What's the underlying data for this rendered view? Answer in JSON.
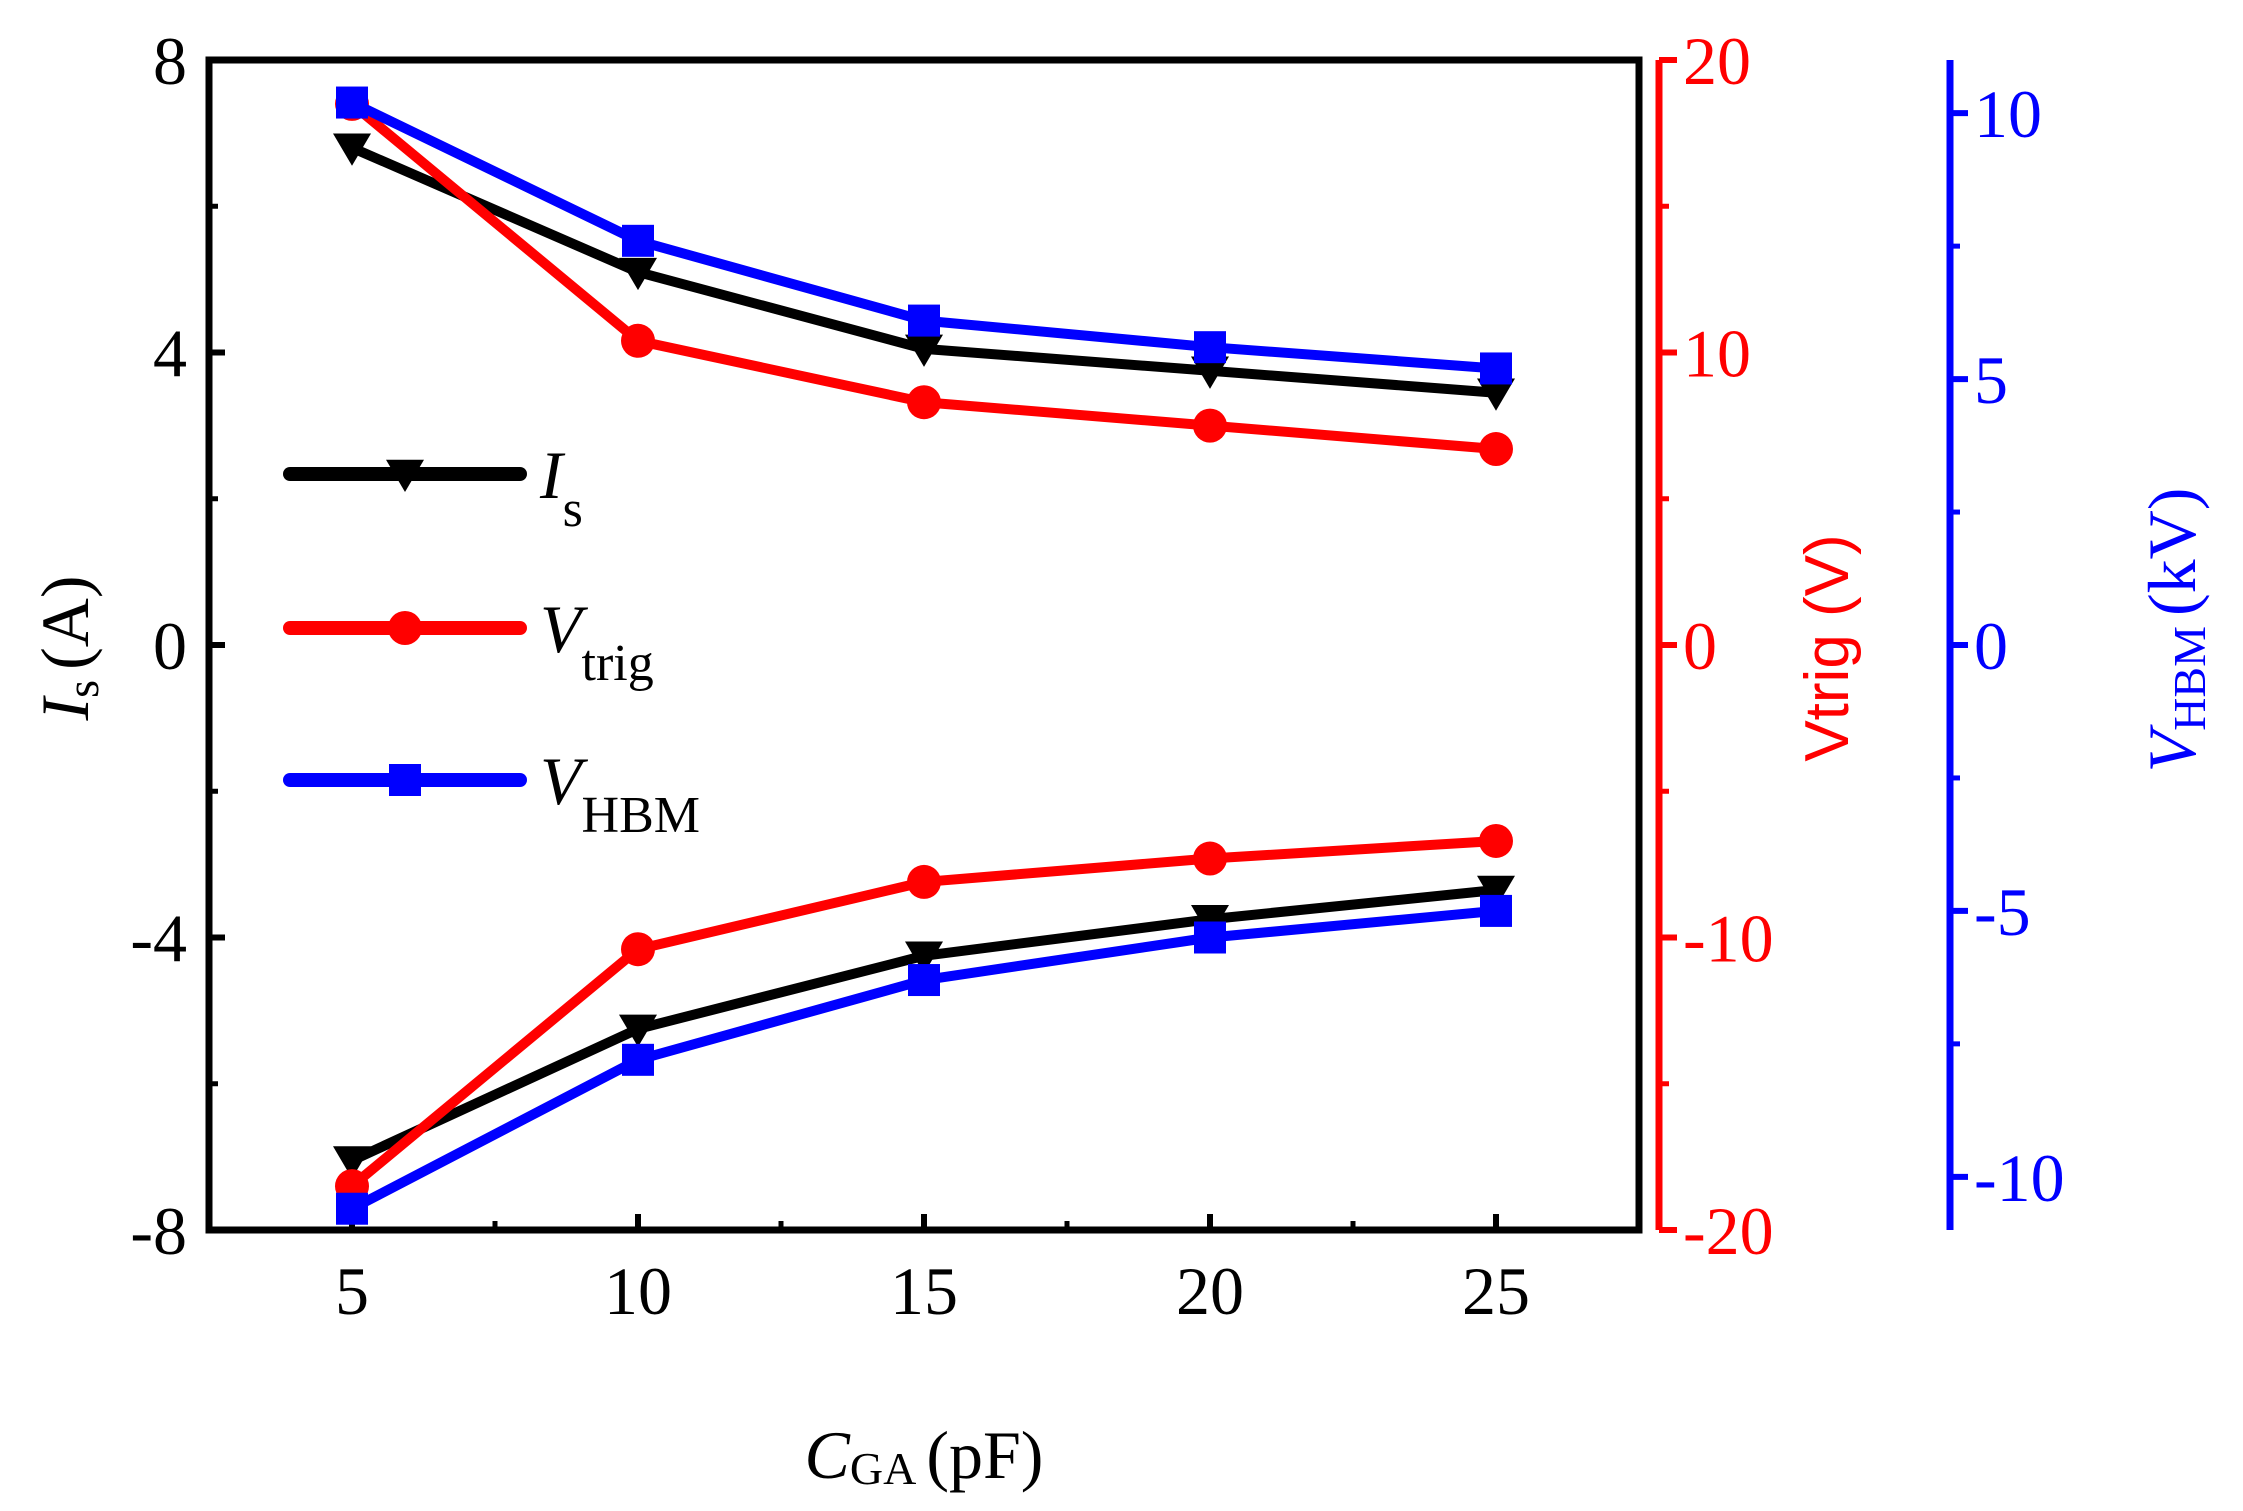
{
  "chart_data": {
    "type": "line",
    "x": [
      5,
      10,
      15,
      20,
      25
    ],
    "xlabel": {
      "main": "C",
      "sub": "GA",
      "unit": "(pF)"
    },
    "xlim": [
      2.5,
      27.5
    ],
    "xticks": [
      "5",
      "10",
      "15",
      "20",
      "25"
    ],
    "left_axis": {
      "label": {
        "main": "I",
        "sub": "s",
        "unit": "(A)"
      },
      "ylim": [
        -8,
        8
      ],
      "ticks": [
        "8",
        "4",
        "0",
        "-4",
        "-8"
      ],
      "color": "#000000"
    },
    "right_axis_1": {
      "label": "Vtrig (V)",
      "ylim": [
        -20,
        20
      ],
      "ticks": [
        "20",
        "10",
        "0",
        "-10",
        "-20"
      ],
      "color": "#ff0000"
    },
    "right_axis_2": {
      "label": {
        "main": "V",
        "sub": "HBM",
        "unit": "(kV)"
      },
      "ylim": [
        -11,
        11
      ],
      "ticks": [
        "10",
        "5",
        "0",
        "-5",
        "-10"
      ],
      "color": "#0000ff"
    },
    "series": [
      {
        "name": "Is positive",
        "axis": "left",
        "color": "#000000",
        "marker": "triangle-down",
        "values": [
          6.8,
          5.1,
          4.05,
          3.75,
          3.45
        ]
      },
      {
        "name": "Is negative",
        "axis": "left",
        "color": "#000000",
        "marker": "triangle-down",
        "values": [
          -7.05,
          -5.25,
          -4.25,
          -3.75,
          -3.35
        ]
      },
      {
        "name": "Vtrig positive",
        "axis": "right1",
        "color": "#ff0000",
        "marker": "circle",
        "values": [
          18.5,
          10.4,
          8.3,
          7.5,
          6.7
        ]
      },
      {
        "name": "Vtrig negative",
        "axis": "right1",
        "color": "#ff0000",
        "marker": "circle",
        "values": [
          -18.5,
          -10.4,
          -8.1,
          -7.3,
          -6.7
        ]
      },
      {
        "name": "VHBM positive",
        "axis": "right2",
        "color": "#0000ff",
        "marker": "square",
        "values": [
          10.2,
          7.6,
          6.1,
          5.6,
          5.2
        ]
      },
      {
        "name": "VHBM negative",
        "axis": "right2",
        "color": "#0000ff",
        "marker": "square",
        "values": [
          -10.6,
          -7.8,
          -6.3,
          -5.5,
          -5.0
        ]
      }
    ],
    "legend": {
      "position": "center-left",
      "entries": [
        {
          "main": "I",
          "sub": "s",
          "color": "#000000",
          "marker": "triangle-down"
        },
        {
          "main": "V",
          "sub": "trig",
          "color": "#ff0000",
          "marker": "circle"
        },
        {
          "main": "V",
          "sub": "HBM",
          "color": "#0000ff",
          "marker": "square"
        }
      ]
    }
  }
}
